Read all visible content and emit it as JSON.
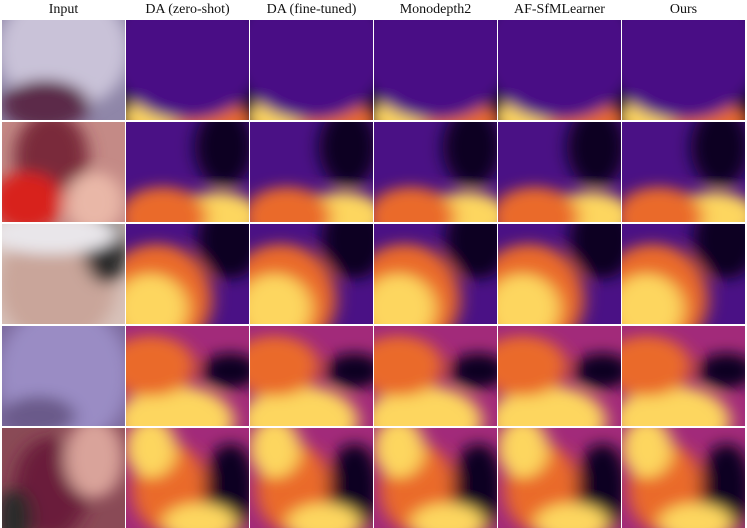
{
  "columns": [
    {
      "key": "input",
      "label": "Input"
    },
    {
      "key": "da_zero",
      "label": "DA (zero-shot)"
    },
    {
      "key": "da_ft",
      "label": "DA (fine-tuned)"
    },
    {
      "key": "monodepth2",
      "label": "Monodepth2"
    },
    {
      "key": "afsfm",
      "label": "AF-SfMLearner"
    },
    {
      "key": "ours",
      "label": "Ours"
    }
  ],
  "rows": 5,
  "colors": {
    "background": "#ffffff",
    "inferno_dark": "#0d0421",
    "inferno_purple": "#4a1185",
    "inferno_magenta": "#a22a7a",
    "inferno_orange": "#ea6a2c",
    "inferno_yellow": "#fdd65e"
  }
}
